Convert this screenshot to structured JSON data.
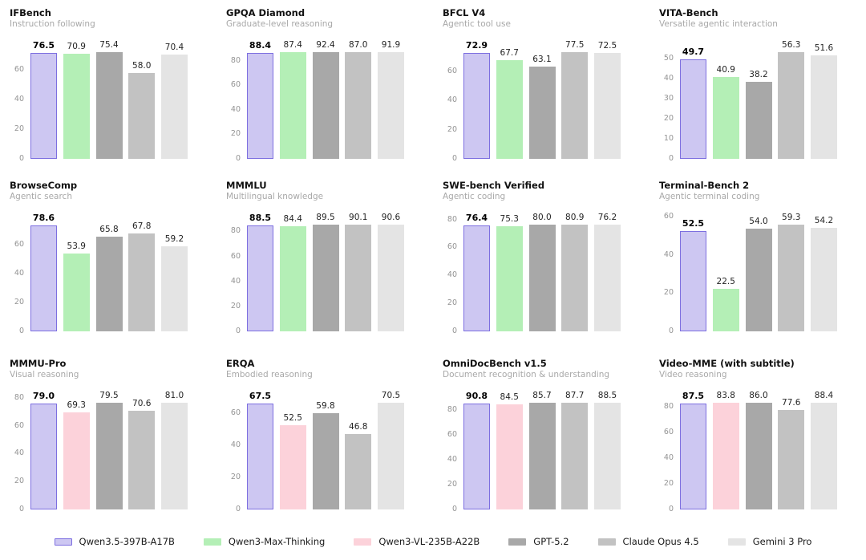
{
  "page": {
    "background": "#ffffff"
  },
  "highlight_series": "Qwen3.5-397B-A17B",
  "series_colors": {
    "Qwen3.5-397B-A17B": {
      "fill": "#cdc7f2",
      "border": "#7d6fe0"
    },
    "Qwen3-Max-Thinking": {
      "fill": "#b4efb6"
    },
    "Qwen3-VL-235B-A22B": {
      "fill": "#fcd2da"
    },
    "GPT-5.2": {
      "fill": "#a8a8a8"
    },
    "Claude Opus 4.5": {
      "fill": "#c2c2c2"
    },
    "Gemini 3 Pro": {
      "fill": "#e4e4e4"
    }
  },
  "legend": {
    "items": [
      {
        "label": "Qwen3.5-397B-A17B",
        "color": "#cdc7f2",
        "border": "#7d6fe0"
      },
      {
        "label": "Qwen3-Max-Thinking",
        "color": "#b4efb6"
      },
      {
        "label": "Qwen3-VL-235B-A22B",
        "color": "#fcd2da"
      },
      {
        "label": "GPT-5.2",
        "color": "#a8a8a8"
      },
      {
        "label": "Claude Opus 4.5",
        "color": "#c2c2c2"
      },
      {
        "label": "Gemini 3 Pro",
        "color": "#e4e4e4"
      }
    ]
  },
  "chart_data": [
    {
      "type": "bar",
      "title": "IFBench",
      "subtitle": "Instruction following",
      "yticks": [
        0,
        20,
        40,
        60
      ],
      "ylim": [
        0,
        80.3
      ],
      "grid": false,
      "legend_position": "bottom-shared",
      "categories": [
        "Qwen3.5-397B-A17B",
        "Qwen3-Max-Thinking",
        "GPT-5.2",
        "Claude Opus 4.5",
        "Gemini 3 Pro"
      ],
      "values": [
        76.5,
        70.9,
        75.4,
        58.0,
        70.4
      ]
    },
    {
      "type": "bar",
      "title": "GPQA Diamond",
      "subtitle": "Graduate-level reasoning",
      "yticks": [
        0,
        20,
        40,
        60,
        80
      ],
      "ylim": [
        0,
        97.0
      ],
      "grid": false,
      "legend_position": "bottom-shared",
      "categories": [
        "Qwen3.5-397B-A17B",
        "Qwen3-Max-Thinking",
        "GPT-5.2",
        "Claude Opus 4.5",
        "Gemini 3 Pro"
      ],
      "values": [
        88.4,
        87.4,
        92.4,
        87.0,
        91.9
      ]
    },
    {
      "type": "bar",
      "title": "BFCL V4",
      "subtitle": "Agentic tool use",
      "yticks": [
        0,
        20,
        40,
        60
      ],
      "ylim": [
        0,
        81.4
      ],
      "grid": false,
      "legend_position": "bottom-shared",
      "categories": [
        "Qwen3.5-397B-A17B",
        "Qwen3-Max-Thinking",
        "GPT-5.2",
        "Claude Opus 4.5",
        "Gemini 3 Pro"
      ],
      "values": [
        72.9,
        67.7,
        63.1,
        77.5,
        72.5
      ]
    },
    {
      "type": "bar",
      "title": "VITA-Bench",
      "subtitle": "Versatile agentic interaction",
      "yticks": [
        0,
        10,
        20,
        30,
        40,
        50
      ],
      "ylim": [
        0,
        59.1
      ],
      "grid": false,
      "legend_position": "bottom-shared",
      "categories": [
        "Qwen3.5-397B-A17B",
        "Qwen3-Max-Thinking",
        "GPT-5.2",
        "Claude Opus 4.5",
        "Gemini 3 Pro"
      ],
      "values": [
        49.7,
        40.9,
        38.2,
        56.3,
        51.6
      ]
    },
    {
      "type": "bar",
      "title": "BrowseComp",
      "subtitle": "Agentic search",
      "yticks": [
        0,
        20,
        40,
        60
      ],
      "ylim": [
        0,
        82.5
      ],
      "grid": false,
      "legend_position": "bottom-shared",
      "categories": [
        "Qwen3.5-397B-A17B",
        "Qwen3-Max-Thinking",
        "GPT-5.2",
        "Claude Opus 4.5",
        "Gemini 3 Pro"
      ],
      "values": [
        78.6,
        53.9,
        65.8,
        67.8,
        59.2
      ]
    },
    {
      "type": "bar",
      "title": "MMMLU",
      "subtitle": "Multilingual knowledge",
      "yticks": [
        0,
        20,
        40,
        60,
        80
      ],
      "ylim": [
        0,
        95.1
      ],
      "grid": false,
      "legend_position": "bottom-shared",
      "categories": [
        "Qwen3.5-397B-A17B",
        "Qwen3-Max-Thinking",
        "GPT-5.2",
        "Claude Opus 4.5",
        "Gemini 3 Pro"
      ],
      "values": [
        88.5,
        84.4,
        89.5,
        90.1,
        90.6
      ]
    },
    {
      "type": "bar",
      "title": "SWE-bench Verified",
      "subtitle": "Agentic coding",
      "yticks": [
        0,
        20,
        40,
        60,
        80
      ],
      "ylim": [
        0,
        84.9
      ],
      "grid": false,
      "legend_position": "bottom-shared",
      "categories": [
        "Qwen3.5-397B-A17B",
        "Qwen3-Max-Thinking",
        "GPT-5.2",
        "Claude Opus 4.5",
        "Gemini 3 Pro"
      ],
      "values": [
        76.4,
        75.3,
        80.0,
        80.9,
        76.2
      ]
    },
    {
      "type": "bar",
      "title": "Terminal-Bench 2",
      "subtitle": "Agentic terminal coding",
      "yticks": [
        0,
        20,
        40,
        60
      ],
      "ylim": [
        0,
        62.3
      ],
      "grid": false,
      "legend_position": "bottom-shared",
      "categories": [
        "Qwen3.5-397B-A17B",
        "Qwen3-Max-Thinking",
        "GPT-5.2",
        "Claude Opus 4.5",
        "Gemini 3 Pro"
      ],
      "values": [
        52.5,
        22.5,
        54.0,
        59.3,
        54.2
      ]
    },
    {
      "type": "bar",
      "title": "MMMU-Pro",
      "subtitle": "Visual reasoning",
      "yticks": [
        0,
        20,
        40,
        60,
        80
      ],
      "ylim": [
        0,
        85.1
      ],
      "grid": false,
      "legend_position": "bottom-shared",
      "categories": [
        "Qwen3.5-397B-A17B",
        "Qwen3-VL-235B-A22B",
        "GPT-5.2",
        "Claude Opus 4.5",
        "Gemini 3 Pro"
      ],
      "values": [
        79.0,
        69.3,
        79.5,
        70.6,
        81.0
      ]
    },
    {
      "type": "bar",
      "title": "ERQA",
      "subtitle": "Embodied reasoning",
      "yticks": [
        0,
        20,
        40,
        60
      ],
      "ylim": [
        0,
        74.0
      ],
      "grid": false,
      "legend_position": "bottom-shared",
      "categories": [
        "Qwen3.5-397B-A17B",
        "Qwen3-VL-235B-A22B",
        "GPT-5.2",
        "Claude Opus 4.5",
        "Gemini 3 Pro"
      ],
      "values": [
        67.5,
        52.5,
        59.8,
        46.8,
        70.5
      ]
    },
    {
      "type": "bar",
      "title": "OmniDocBench v1.5",
      "subtitle": "Document recognition & understanding",
      "yticks": [
        0,
        20,
        40,
        60,
        80
      ],
      "ylim": [
        0,
        95.3
      ],
      "grid": false,
      "legend_position": "bottom-shared",
      "categories": [
        "Qwen3.5-397B-A17B",
        "Qwen3-VL-235B-A22B",
        "GPT-5.2",
        "Claude Opus 4.5",
        "Gemini 3 Pro"
      ],
      "values": [
        90.8,
        84.5,
        85.7,
        87.7,
        88.5
      ]
    },
    {
      "type": "bar",
      "title": "Video-MME (with subtitle)",
      "subtitle": "Video reasoning",
      "yticks": [
        0,
        20,
        40,
        60,
        80
      ],
      "ylim": [
        0,
        92.8
      ],
      "grid": false,
      "legend_position": "bottom-shared",
      "categories": [
        "Qwen3.5-397B-A17B",
        "Qwen3-VL-235B-A22B",
        "GPT-5.2",
        "Claude Opus 4.5",
        "Gemini 3 Pro"
      ],
      "values": [
        87.5,
        83.8,
        86.0,
        77.6,
        88.4
      ]
    }
  ]
}
